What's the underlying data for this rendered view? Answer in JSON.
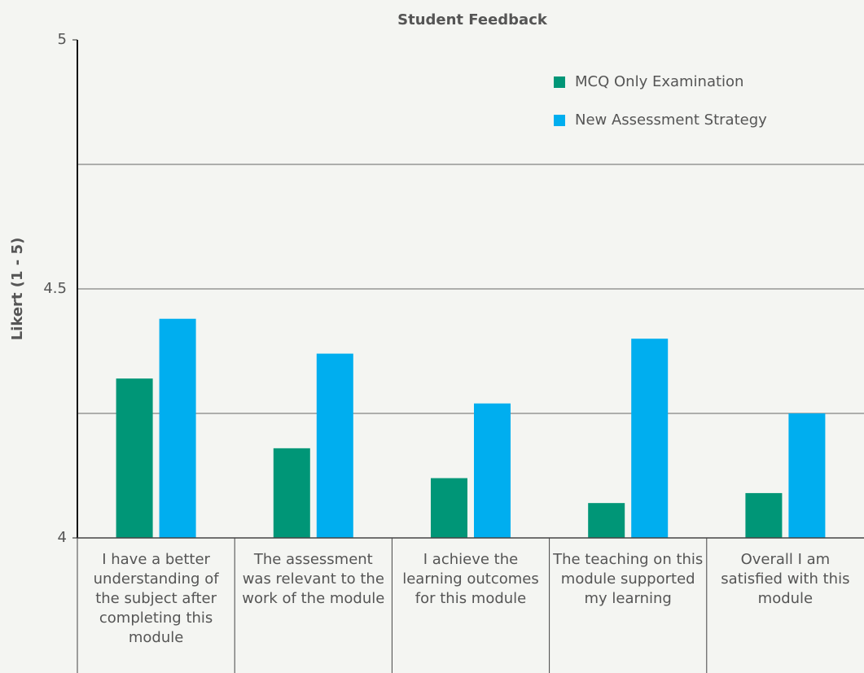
{
  "chart_data": {
    "type": "bar",
    "title": "Student Feedback",
    "ylabel": "Likert (1 - 5)",
    "categories": [
      "I have a better understanding of the subject after completing this module",
      "The assessment was relevant to the work of the module",
      "I achieve the learning outcomes for this module",
      "The teaching on this module supported my learning",
      "Overall I am satisfied with this module"
    ],
    "series": [
      {
        "name": "MCQ Only Examination",
        "color": "#009677",
        "values": [
          4.32,
          4.18,
          4.12,
          4.07,
          4.09
        ]
      },
      {
        "name": "New Assessment Strategy",
        "color": "#00aeef",
        "values": [
          4.44,
          4.37,
          4.27,
          4.4,
          4.25
        ]
      }
    ],
    "ylim": [
      4,
      5
    ],
    "yticks": [
      4,
      4.5,
      5
    ],
    "minor_yticks": [
      4.25,
      4.75
    ],
    "grid": true,
    "legend": "upper right"
  }
}
